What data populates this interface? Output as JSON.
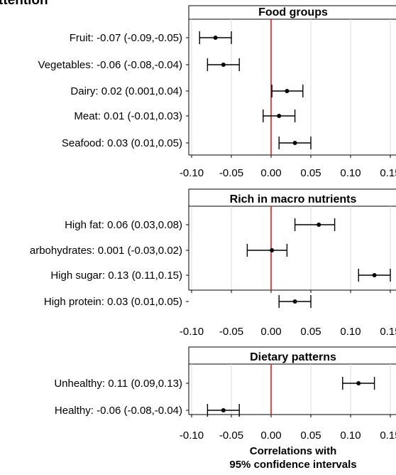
{
  "figure": {
    "title_fragment": "ttention",
    "xlabel_line1": "Correlations with",
    "xlabel_line2": "95% confidence intervals"
  },
  "colors": {
    "reference_line": "#e8191e",
    "marks": "#000000",
    "gridline": "#dedede",
    "panel_header_bg": "#ffffff"
  },
  "chart_data": [
    {
      "type": "scatter",
      "panel": "food-groups",
      "title": "Food groups",
      "x_ticks": [
        "-0.10",
        "-0.05",
        "0.00",
        "0.05",
        "0.10",
        "0.15"
      ],
      "xlim": [
        -0.1,
        0.15
      ],
      "reference_x": 0.0,
      "grid": true,
      "items": [
        {
          "label": "Fruit: -0.07 (-0.09,-0.05)",
          "est": -0.07,
          "lo": -0.09,
          "hi": -0.05
        },
        {
          "label": "Vegetables: -0.06 (-0.08,-0.04)",
          "est": -0.06,
          "lo": -0.08,
          "hi": -0.04
        },
        {
          "label": "Dairy: 0.02 (0.001,0.04)",
          "est": 0.02,
          "lo": 0.001,
          "hi": 0.04
        },
        {
          "label": "Meat: 0.01 (-0.01,0.03)",
          "est": 0.01,
          "lo": -0.01,
          "hi": 0.03
        },
        {
          "label": "Seafood: 0.03 (0.01,0.05)",
          "est": 0.03,
          "lo": 0.01,
          "hi": 0.05
        }
      ]
    },
    {
      "type": "scatter",
      "panel": "rich-in-macro-nutrients",
      "title": "Rich in macro nutrients",
      "x_ticks": [
        "-0.10",
        "-0.05",
        "0.00",
        "0.05",
        "0.10",
        "0.15"
      ],
      "xlim": [
        -0.1,
        0.15
      ],
      "reference_x": 0.0,
      "grid": true,
      "items": [
        {
          "label": "High fat: 0.06 (0.03,0.08)",
          "est": 0.06,
          "lo": 0.03,
          "hi": 0.08
        },
        {
          "label": "arbohydrates: 0.001 (-0.03,0.02)",
          "est": 0.001,
          "lo": -0.03,
          "hi": 0.02
        },
        {
          "label": "High sugar: 0.13 (0.11,0.15)",
          "est": 0.13,
          "lo": 0.11,
          "hi": 0.15
        },
        {
          "label": "High protein: 0.03 (0.01,0.05)",
          "est": 0.03,
          "lo": 0.01,
          "hi": 0.05
        }
      ]
    },
    {
      "type": "scatter",
      "panel": "dietary-patterns",
      "title": "Dietary patterns",
      "x_ticks": [
        "-0.10",
        "-0.05",
        "0.00",
        "0.05",
        "0.10",
        "0.15"
      ],
      "xlim": [
        -0.1,
        0.15
      ],
      "reference_x": 0.0,
      "grid": true,
      "items": [
        {
          "label": "Unhealthy: 0.11 (0.09,0.13)",
          "est": 0.11,
          "lo": 0.09,
          "hi": 0.13
        },
        {
          "label": "Healthy: -0.06 (-0.08,-0.04)",
          "est": -0.06,
          "lo": -0.08,
          "hi": -0.04
        }
      ]
    }
  ]
}
